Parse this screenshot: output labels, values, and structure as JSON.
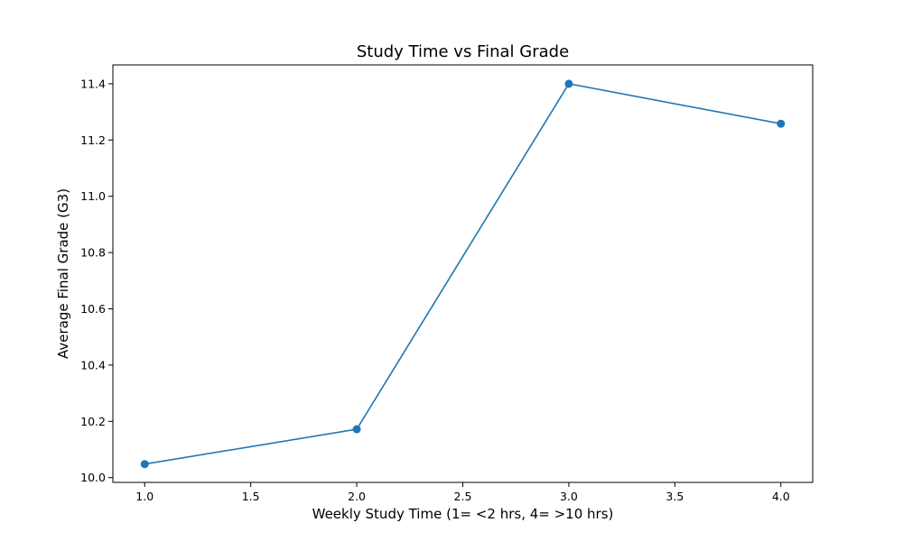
{
  "chart_data": {
    "type": "line",
    "title": "Study Time vs Final Grade",
    "xlabel": "Weekly Study Time (1= <2 hrs, 4= >10 hrs)",
    "ylabel": "Average Final Grade (G3)",
    "xlim": [
      0.85,
      4.15
    ],
    "ylim": [
      9.983,
      11.467
    ],
    "x_ticks": [
      1.0,
      1.5,
      2.0,
      2.5,
      3.0,
      3.5,
      4.0
    ],
    "x_tick_labels": [
      "1.0",
      "1.5",
      "2.0",
      "2.5",
      "3.0",
      "3.5",
      "4.0"
    ],
    "y_ticks": [
      10.0,
      10.2,
      10.4,
      10.6,
      10.8,
      11.0,
      11.2,
      11.4
    ],
    "y_tick_labels": [
      "10.0",
      "10.2",
      "10.4",
      "10.6",
      "10.8",
      "11.0",
      "11.2",
      "11.4"
    ],
    "grid": false,
    "series": [
      {
        "color": "#1f77b4",
        "marker": "circle",
        "x": [
          1.0,
          2.0,
          3.0,
          4.0
        ],
        "y": [
          10.048,
          10.172,
          11.4,
          11.258
        ]
      }
    ]
  }
}
